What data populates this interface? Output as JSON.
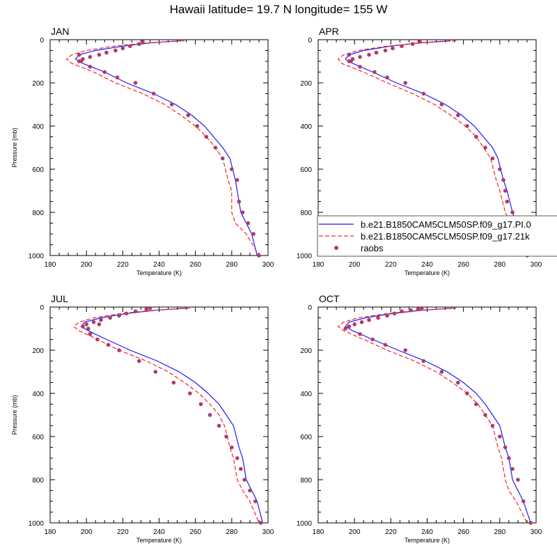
{
  "title": "Hawaii  latitude= 19.7 N longitude= 155 W",
  "colors": {
    "model_pi": "#1a1aff",
    "model_21k": "#ff2020",
    "raobs": "#b03a6a"
  },
  "chart_data": [
    {
      "type": "line",
      "panel": "JAN",
      "xlabel": "Temperature (K)",
      "ylabel": "Pressure (mb)",
      "xlim": [
        180,
        300
      ],
      "ylim": [
        1000,
        0
      ],
      "y_reversed": true,
      "xticks": [
        180,
        200,
        220,
        240,
        260,
        280,
        300
      ],
      "yticks": [
        0,
        200,
        400,
        600,
        800,
        1000
      ],
      "series": [
        {
          "name": "b.e21.B1850CAM5CLM50SP.f09_g17.PI.0",
          "style": "solid",
          "x": [
            252,
            235,
            220,
            205,
            196,
            194,
            198,
            210,
            222,
            237,
            249,
            258,
            265,
            270,
            275,
            279,
            282,
            283,
            285,
            288,
            291,
            294
          ],
          "y": [
            5,
            15,
            30,
            50,
            70,
            90,
            110,
            150,
            200,
            250,
            300,
            350,
            400,
            450,
            500,
            550,
            650,
            700,
            800,
            850,
            900,
            1000
          ]
        },
        {
          "name": "b.e21.B1850CAM5CLM50SP.f09_g17.21k",
          "style": "dashed",
          "x": [
            254,
            234,
            215,
            200,
            192,
            189,
            192,
            204,
            216,
            231,
            243,
            252,
            260,
            266,
            271,
            275,
            278,
            280,
            280,
            282,
            288,
            295
          ],
          "y": [
            5,
            15,
            30,
            50,
            70,
            90,
            110,
            150,
            200,
            250,
            300,
            350,
            400,
            450,
            500,
            550,
            650,
            700,
            800,
            850,
            900,
            1000
          ]
        },
        {
          "name": "raobs",
          "style": "markers",
          "x": [
            231,
            229,
            224,
            220,
            216,
            211,
            207,
            202,
            198,
            196,
            196,
            197,
            202,
            210,
            217,
            227,
            237,
            247,
            256,
            261,
            266,
            271,
            275,
            280,
            283,
            284,
            286,
            289,
            292,
            295
          ],
          "y": [
            10,
            20,
            30,
            40,
            50,
            60,
            70,
            80,
            90,
            100,
            70,
            100,
            125,
            150,
            175,
            200,
            250,
            300,
            350,
            400,
            450,
            500,
            550,
            600,
            650,
            750,
            800,
            850,
            900,
            1000
          ]
        }
      ]
    },
    {
      "type": "line",
      "panel": "APR",
      "xlabel": "Temperature (K)",
      "ylabel": "",
      "xlim": [
        180,
        300
      ],
      "ylim": [
        1000,
        0
      ],
      "y_reversed": true,
      "xticks": [
        180,
        200,
        220,
        240,
        260,
        280,
        300
      ],
      "yticks": [
        0,
        200,
        400,
        600,
        800,
        1000
      ],
      "series": [
        {
          "name": "b.e21.B1850CAM5CLM50SP.f09_g17.PI.0",
          "style": "solid",
          "x": [
            253,
            235,
            220,
            205,
            197,
            195,
            199,
            210,
            223,
            238,
            250,
            259,
            266,
            271,
            276,
            279,
            282,
            284,
            287,
            289,
            292,
            295
          ],
          "y": [
            5,
            15,
            30,
            50,
            70,
            90,
            110,
            150,
            200,
            250,
            300,
            350,
            400,
            450,
            500,
            550,
            650,
            700,
            800,
            850,
            900,
            1000
          ]
        },
        {
          "name": "b.e21.B1850CAM5CLM50SP.f09_g17.21k",
          "style": "dashed",
          "x": [
            256,
            236,
            218,
            202,
            194,
            191,
            193,
            205,
            218,
            232,
            244,
            253,
            261,
            267,
            271,
            275,
            278,
            280,
            283,
            286,
            289,
            293
          ],
          "y": [
            5,
            15,
            30,
            50,
            70,
            90,
            110,
            150,
            200,
            250,
            300,
            350,
            400,
            450,
            500,
            550,
            650,
            700,
            800,
            850,
            900,
            1000
          ]
        },
        {
          "name": "raobs",
          "style": "markers",
          "x": [
            236,
            232,
            226,
            221,
            217,
            212,
            208,
            203,
            199,
            197,
            197,
            198,
            203,
            211,
            218,
            228,
            238,
            248,
            257,
            262,
            267,
            272,
            276,
            280,
            282,
            283,
            284,
            287,
            290,
            295
          ],
          "y": [
            10,
            20,
            30,
            40,
            50,
            60,
            70,
            80,
            90,
            100,
            70,
            100,
            125,
            150,
            175,
            200,
            250,
            300,
            350,
            400,
            450,
            500,
            550,
            600,
            650,
            700,
            750,
            800,
            900,
            1000
          ]
        }
      ]
    },
    {
      "type": "line",
      "panel": "JUL",
      "xlabel": "Temperature (K)",
      "ylabel": "Pressure (mb)",
      "xlim": [
        180,
        300
      ],
      "ylim": [
        1000,
        0
      ],
      "y_reversed": true,
      "xticks": [
        180,
        200,
        220,
        240,
        260,
        280,
        300
      ],
      "yticks": [
        0,
        200,
        400,
        600,
        800,
        1000
      ],
      "series": [
        {
          "name": "b.e21.B1850CAM5CLM50SP.f09_g17.PI.0",
          "style": "solid",
          "x": [
            255,
            238,
            222,
            208,
            199,
            197,
            201,
            211,
            224,
            239,
            251,
            260,
            267,
            273,
            277,
            281,
            284,
            286,
            288,
            291,
            294,
            297
          ],
          "y": [
            5,
            15,
            30,
            50,
            70,
            90,
            110,
            150,
            200,
            250,
            300,
            350,
            400,
            450,
            500,
            550,
            650,
            700,
            800,
            850,
            900,
            1000
          ]
        },
        {
          "name": "b.e21.B1850CAM5CLM50SP.f09_g17.21k",
          "style": "dashed",
          "x": [
            257,
            237,
            219,
            204,
            196,
            193,
            196,
            206,
            218,
            233,
            245,
            254,
            262,
            268,
            273,
            276,
            279,
            281,
            283,
            286,
            290,
            295
          ],
          "y": [
            5,
            15,
            30,
            50,
            70,
            90,
            110,
            150,
            200,
            250,
            300,
            350,
            400,
            450,
            500,
            550,
            650,
            700,
            800,
            850,
            900,
            1000
          ]
        },
        {
          "name": "raobs",
          "style": "markers",
          "x": [
            235,
            233,
            227,
            222,
            218,
            213,
            208,
            204,
            200,
            198,
            207,
            201,
            202,
            206,
            212,
            218,
            229,
            238,
            248,
            257,
            263,
            268,
            273,
            277,
            280,
            283,
            285,
            287,
            290,
            293,
            296
          ],
          "y": [
            5,
            10,
            20,
            30,
            40,
            50,
            60,
            70,
            80,
            90,
            80,
            100,
            125,
            150,
            175,
            200,
            250,
            300,
            350,
            400,
            450,
            500,
            550,
            600,
            650,
            700,
            750,
            800,
            850,
            900,
            1000
          ]
        }
      ]
    },
    {
      "type": "line",
      "panel": "OCT",
      "xlabel": "Temperature (K)",
      "ylabel": "",
      "xlim": [
        180,
        300
      ],
      "ylim": [
        1000,
        0
      ],
      "y_reversed": true,
      "xticks": [
        180,
        200,
        220,
        240,
        260,
        280,
        300
      ],
      "yticks": [
        0,
        200,
        400,
        600,
        800,
        1000
      ],
      "series": [
        {
          "name": "b.e21.B1850CAM5CLM50SP.f09_g17.PI.0",
          "style": "solid",
          "x": [
            254,
            237,
            221,
            206,
            197,
            195,
            199,
            210,
            224,
            239,
            251,
            260,
            267,
            272,
            276,
            280,
            283,
            285,
            287,
            290,
            293,
            297
          ],
          "y": [
            5,
            15,
            30,
            50,
            70,
            90,
            110,
            150,
            200,
            250,
            300,
            350,
            400,
            450,
            500,
            550,
            650,
            700,
            800,
            850,
            900,
            1000
          ]
        },
        {
          "name": "b.e21.B1850CAM5CLM50SP.f09_g17.21k",
          "style": "dashed",
          "x": [
            256,
            236,
            218,
            202,
            194,
            191,
            194,
            205,
            218,
            233,
            245,
            254,
            262,
            268,
            272,
            276,
            279,
            281,
            283,
            285,
            289,
            295
          ],
          "y": [
            5,
            15,
            30,
            50,
            70,
            90,
            110,
            150,
            200,
            250,
            300,
            350,
            400,
            450,
            500,
            550,
            650,
            700,
            800,
            850,
            900,
            1000
          ]
        },
        {
          "name": "raobs",
          "style": "markers",
          "x": [
            237,
            235,
            231,
            226,
            222,
            218,
            213,
            208,
            204,
            200,
            197,
            195,
            203,
            210,
            217,
            228,
            238,
            248,
            257,
            262,
            267,
            272,
            276,
            280,
            283,
            285,
            287,
            290,
            293,
            297
          ],
          "y": [
            5,
            10,
            15,
            20,
            30,
            40,
            50,
            60,
            70,
            80,
            90,
            100,
            125,
            150,
            175,
            200,
            250,
            300,
            350,
            400,
            450,
            500,
            550,
            600,
            650,
            700,
            750,
            800,
            900,
            1000
          ]
        }
      ]
    }
  ],
  "legend": {
    "placement": "over-right-of-APR-panel",
    "entries": [
      {
        "label": "b.e21.B1850CAM5CLM50SP.f09_g17.PI.0",
        "style": "solid"
      },
      {
        "label": "b.e21.B1850CAM5CLM50SP.f09_g17.21k",
        "style": "dashed"
      },
      {
        "label": "raobs",
        "style": "markers"
      }
    ]
  }
}
